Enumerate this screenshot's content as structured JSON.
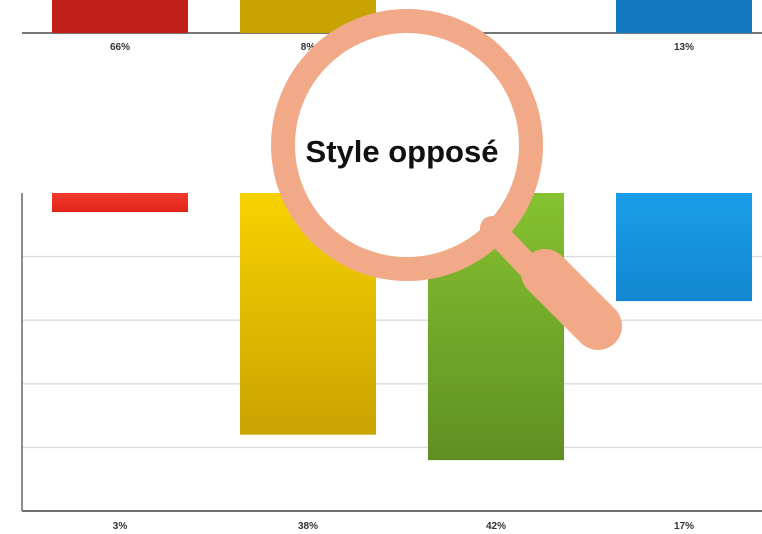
{
  "chart_data": [
    {
      "type": "bar",
      "position": "top",
      "title": "",
      "categories": [
        "66%",
        "8%",
        "",
        "13%"
      ],
      "series": [
        {
          "values": [
            66,
            8,
            null,
            13
          ],
          "colors": [
            "#c0201a",
            "#c8a400",
            "#6a9a28",
            "#1279be"
          ]
        }
      ],
      "grid": false
    },
    {
      "type": "bar",
      "position": "bottom",
      "orientation": "downward",
      "title": "Style opposé",
      "categories": [
        "3%",
        "38%",
        "42%",
        "17%"
      ],
      "series": [
        {
          "values": [
            3,
            38,
            42,
            17
          ],
          "colors": [
            "#ee2a22",
            "#f2c800",
            "#7fbb2d",
            "#1597e3"
          ]
        }
      ],
      "ylim": [
        0,
        50
      ],
      "grid": true
    }
  ],
  "magnifier": {
    "icon": "magnifier-icon",
    "color": "#f2a987"
  }
}
